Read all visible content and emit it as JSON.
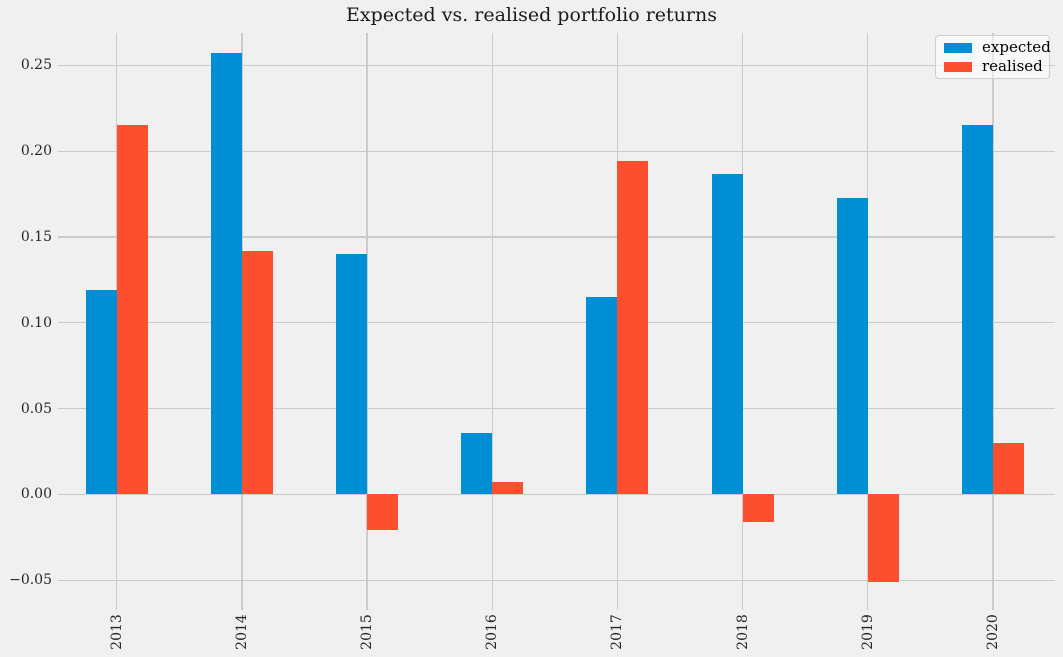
{
  "figure": {
    "title": "Expected vs. realised portfolio returns"
  },
  "legend": {
    "position": "upper right",
    "items": [
      {
        "label": "expected",
        "color": "#008fd5"
      },
      {
        "label": "realised",
        "color": "#fc4f30"
      }
    ]
  },
  "chart_data": {
    "type": "bar",
    "title": "Expected vs. realised portfolio returns",
    "categories": [
      "2013",
      "2014",
      "2015",
      "2016",
      "2017",
      "2018",
      "2019",
      "2020"
    ],
    "series": [
      {
        "name": "expected",
        "color": "#008fd5",
        "values": [
          0.119,
          0.257,
          0.14,
          0.036,
          0.115,
          0.187,
          0.173,
          0.215
        ]
      },
      {
        "name": "realised",
        "color": "#fc4f30",
        "values": [
          0.215,
          0.142,
          -0.021,
          0.007,
          0.194,
          -0.016,
          -0.051,
          0.03
        ]
      }
    ],
    "xlabel": "",
    "ylabel": "",
    "ylim": [
      -0.066,
      0.272
    ],
    "y_ticks": [
      {
        "label": "0.25",
        "value": 0.25
      },
      {
        "label": "0.20",
        "value": 0.2
      },
      {
        "label": "0.15",
        "value": 0.15
      },
      {
        "label": "0.10",
        "value": 0.1
      },
      {
        "label": "0.05",
        "value": 0.05
      },
      {
        "label": "0.00",
        "value": 0.0
      },
      {
        "label": "−0.05",
        "value": -0.05
      }
    ],
    "grid": true,
    "grid_color": "#cbcbcb",
    "background_color": "#f0f0f0",
    "legend_position": "upper right"
  }
}
